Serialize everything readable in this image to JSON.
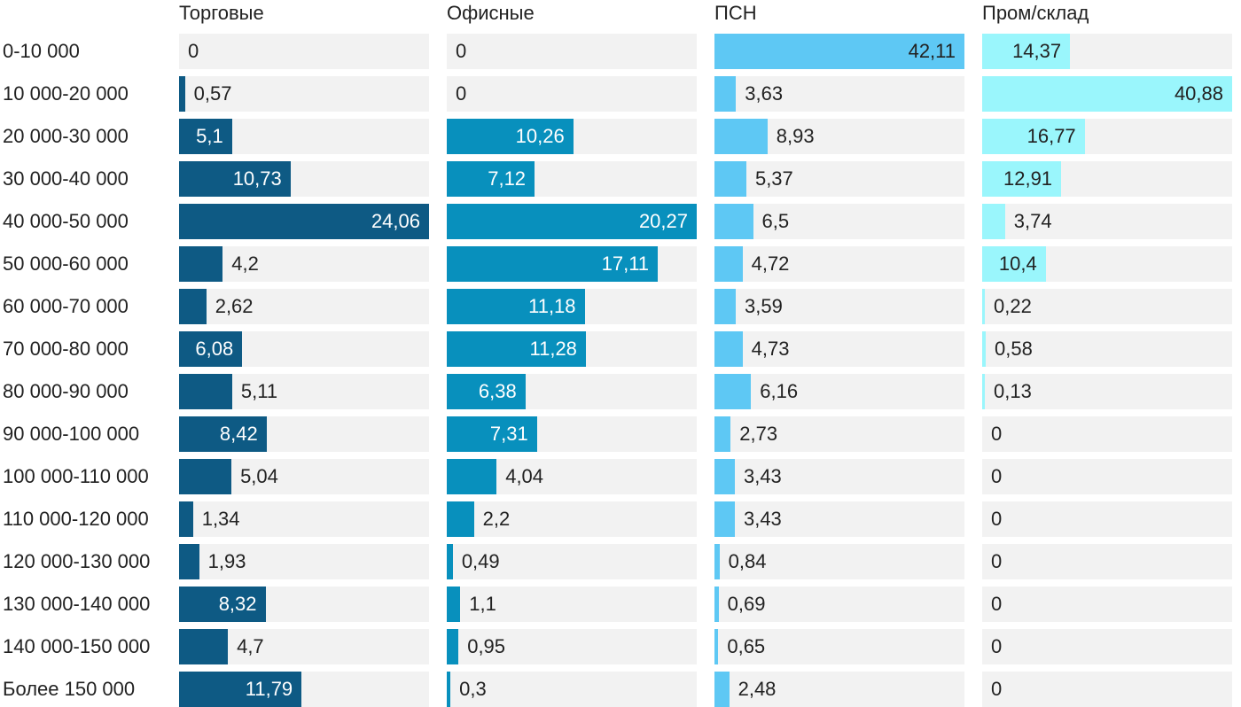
{
  "chart_data": {
    "type": "bar",
    "orientation": "horizontal",
    "layout": "small-multiples",
    "categories": [
      "0-10 000",
      "10 000-20 000",
      "20 000-30 000",
      "30 000-40 000",
      "40 000-50 000",
      "50 000-60 000",
      "60 000-70 000",
      "70 000-80 000",
      "80 000-90 000",
      "90 000-100 000",
      "100 000-110 000",
      "110 000-120 000",
      "120 000-130 000",
      "130 000-140 000",
      "140 000-150 000",
      "Более 150 000"
    ],
    "series": [
      {
        "name": "Торговые",
        "color": "#0e5a84",
        "values": [
          0,
          0.57,
          5.1,
          10.73,
          24.06,
          4.2,
          2.62,
          6.08,
          5.11,
          8.42,
          5.04,
          1.34,
          1.93,
          8.32,
          4.7,
          11.79
        ],
        "labels": [
          "0",
          "0,57",
          "5,1",
          "10,73",
          "24,06",
          "4,2",
          "2,62",
          "6,08",
          "5,11",
          "8,42",
          "5,04",
          "1,34",
          "1,93",
          "8,32",
          "4,7",
          "11,79"
        ]
      },
      {
        "name": "Офисные",
        "color": "#0890bd",
        "values": [
          0,
          0,
          10.26,
          7.12,
          20.27,
          17.11,
          11.18,
          11.28,
          6.38,
          7.31,
          4.04,
          2.2,
          0.49,
          1.1,
          0.95,
          0.3
        ],
        "labels": [
          "0",
          "0",
          "10,26",
          "7,12",
          "20,27",
          "17,11",
          "11,18",
          "11,28",
          "6,38",
          "7,31",
          "4,04",
          "2,2",
          "0,49",
          "1,1",
          "0,95",
          "0,3"
        ]
      },
      {
        "name": "ПСН",
        "color": "#5ec8f4",
        "values": [
          42.11,
          3.63,
          8.93,
          5.37,
          6.5,
          4.72,
          3.59,
          4.73,
          6.16,
          2.73,
          3.43,
          3.43,
          0.84,
          0.69,
          0.65,
          2.48
        ],
        "labels": [
          "42,11",
          "3,63",
          "8,93",
          "5,37",
          "6,5",
          "4,72",
          "3,59",
          "4,73",
          "6,16",
          "2,73",
          "3,43",
          "3,43",
          "0,84",
          "0,69",
          "0,65",
          "2,48"
        ]
      },
      {
        "name": "Пром/склад",
        "color": "#9af6fc",
        "values": [
          14.37,
          40.88,
          16.77,
          12.91,
          3.74,
          10.4,
          0.22,
          0.58,
          0.13,
          0,
          0,
          0,
          0,
          0,
          0,
          0
        ],
        "labels": [
          "14,37",
          "40,88",
          "16,77",
          "12,91",
          "3,74",
          "10,4",
          "0,22",
          "0,58",
          "0,13",
          "0",
          "0",
          "0",
          "0",
          "0",
          "0",
          "0"
        ]
      }
    ],
    "label_colors": {
      "dark": "#222222",
      "light": "#ffffff"
    }
  }
}
